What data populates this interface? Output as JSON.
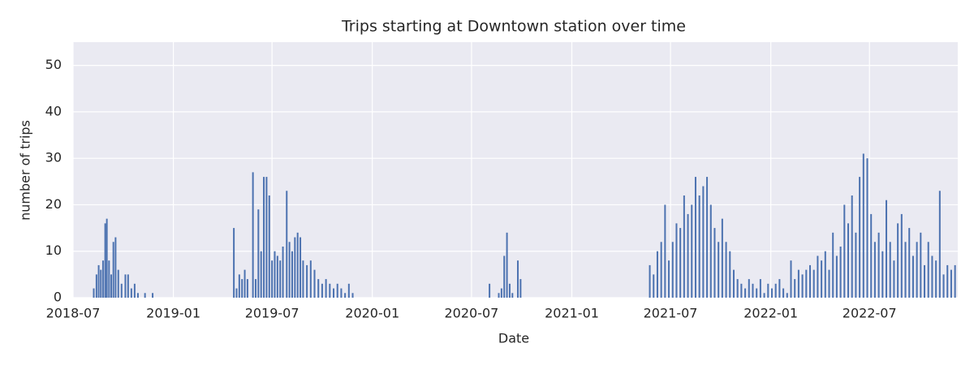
{
  "chart_data": {
    "type": "bar",
    "title": "Trips starting at Downtown station over time",
    "x_label": "Date",
    "y_label": "number of trips",
    "color": "#4c72b0",
    "grid": true,
    "x": [
      "2018-08-08",
      "2018-08-13",
      "2018-08-17",
      "2018-08-21",
      "2018-08-25",
      "2018-08-29",
      "2018-09-01",
      "2018-09-05",
      "2018-09-09",
      "2018-09-13",
      "2018-09-17",
      "2018-09-22",
      "2018-09-28",
      "2018-10-05",
      "2018-10-10",
      "2018-10-16",
      "2018-10-22",
      "2018-10-28",
      "2018-11-10",
      "2018-11-24",
      "2019-04-22",
      "2019-04-27",
      "2019-05-02",
      "2019-05-07",
      "2019-05-12",
      "2019-05-17",
      "2019-05-27",
      "2019-06-01",
      "2019-06-06",
      "2019-06-11",
      "2019-06-16",
      "2019-06-21",
      "2019-06-26",
      "2019-07-01",
      "2019-07-06",
      "2019-07-11",
      "2019-07-16",
      "2019-07-21",
      "2019-07-28",
      "2019-08-02",
      "2019-08-07",
      "2019-08-12",
      "2019-08-17",
      "2019-08-22",
      "2019-08-27",
      "2019-09-03",
      "2019-09-10",
      "2019-09-17",
      "2019-09-24",
      "2019-10-01",
      "2019-10-08",
      "2019-10-15",
      "2019-10-22",
      "2019-10-29",
      "2019-11-05",
      "2019-11-12",
      "2019-11-19",
      "2019-11-26",
      "2020-08-03",
      "2020-08-20",
      "2020-08-25",
      "2020-08-30",
      "2020-09-04",
      "2020-09-09",
      "2020-09-14",
      "2020-09-24",
      "2020-09-29",
      "2021-05-24",
      "2021-05-31",
      "2021-06-07",
      "2021-06-14",
      "2021-06-21",
      "2021-06-28",
      "2021-07-05",
      "2021-07-12",
      "2021-07-19",
      "2021-07-26",
      "2021-08-02",
      "2021-08-09",
      "2021-08-16",
      "2021-08-23",
      "2021-08-30",
      "2021-09-06",
      "2021-09-13",
      "2021-09-20",
      "2021-09-27",
      "2021-10-04",
      "2021-10-11",
      "2021-10-18",
      "2021-10-25",
      "2021-11-01",
      "2021-11-08",
      "2021-11-15",
      "2021-11-22",
      "2021-11-29",
      "2021-12-06",
      "2021-12-13",
      "2021-12-20",
      "2021-12-27",
      "2022-01-03",
      "2022-01-10",
      "2022-01-17",
      "2022-01-24",
      "2022-01-31",
      "2022-02-07",
      "2022-02-14",
      "2022-02-21",
      "2022-02-28",
      "2022-03-07",
      "2022-03-14",
      "2022-03-21",
      "2022-03-28",
      "2022-04-04",
      "2022-04-11",
      "2022-04-18",
      "2022-04-25",
      "2022-05-02",
      "2022-05-09",
      "2022-05-16",
      "2022-05-23",
      "2022-05-30",
      "2022-06-06",
      "2022-06-13",
      "2022-06-20",
      "2022-06-27",
      "2022-07-04",
      "2022-07-11",
      "2022-07-18",
      "2022-07-25",
      "2022-08-01",
      "2022-08-08",
      "2022-08-15",
      "2022-08-22",
      "2022-08-29",
      "2022-09-05",
      "2022-09-12",
      "2022-09-19",
      "2022-09-26",
      "2022-10-03",
      "2022-10-10",
      "2022-10-17",
      "2022-10-24",
      "2022-10-31",
      "2022-11-07",
      "2022-11-14",
      "2022-11-21",
      "2022-11-28",
      "2022-12-05"
    ],
    "values": [
      2,
      5,
      7,
      6,
      8,
      16,
      17,
      8,
      5,
      12,
      13,
      6,
      3,
      5,
      5,
      2,
      3,
      1,
      1,
      1,
      15,
      2,
      5,
      4,
      6,
      4,
      27,
      4,
      19,
      10,
      26,
      26,
      22,
      8,
      10,
      9,
      8,
      11,
      23,
      12,
      10,
      13,
      14,
      13,
      8,
      7,
      8,
      6,
      4,
      3,
      4,
      3,
      2,
      3,
      2,
      1,
      3,
      1,
      3,
      1,
      2,
      9,
      14,
      3,
      1,
      8,
      4,
      7,
      5,
      10,
      12,
      20,
      8,
      12,
      16,
      15,
      22,
      18,
      20,
      26,
      22,
      24,
      26,
      20,
      15,
      12,
      17,
      12,
      10,
      6,
      4,
      3,
      2,
      4,
      3,
      2,
      4,
      1,
      3,
      2,
      3,
      4,
      2,
      1,
      8,
      4,
      6,
      5,
      6,
      7,
      6,
      9,
      8,
      10,
      6,
      14,
      9,
      11,
      20,
      16,
      22,
      14,
      26,
      31,
      30,
      18,
      12,
      14,
      10,
      21,
      12,
      8,
      16,
      18,
      12,
      15,
      9,
      12,
      14,
      7,
      12,
      9,
      8,
      23,
      5,
      7,
      6,
      7
    ],
    "xlim": [
      "2018-07-01",
      "2022-12-10"
    ],
    "xticks": [
      {
        "value": "2018-07-01",
        "label": "2018-07"
      },
      {
        "value": "2019-01-01",
        "label": "2019-01"
      },
      {
        "value": "2019-07-01",
        "label": "2019-07"
      },
      {
        "value": "2020-01-01",
        "label": "2020-01"
      },
      {
        "value": "2020-07-01",
        "label": "2020-07"
      },
      {
        "value": "2021-01-01",
        "label": "2021-01"
      },
      {
        "value": "2021-07-01",
        "label": "2021-07"
      },
      {
        "value": "2022-01-01",
        "label": "2022-01"
      },
      {
        "value": "2022-07-01",
        "label": "2022-07"
      }
    ],
    "ylim": [
      0,
      55
    ],
    "yticks": [
      0,
      10,
      20,
      30,
      40,
      50
    ]
  }
}
